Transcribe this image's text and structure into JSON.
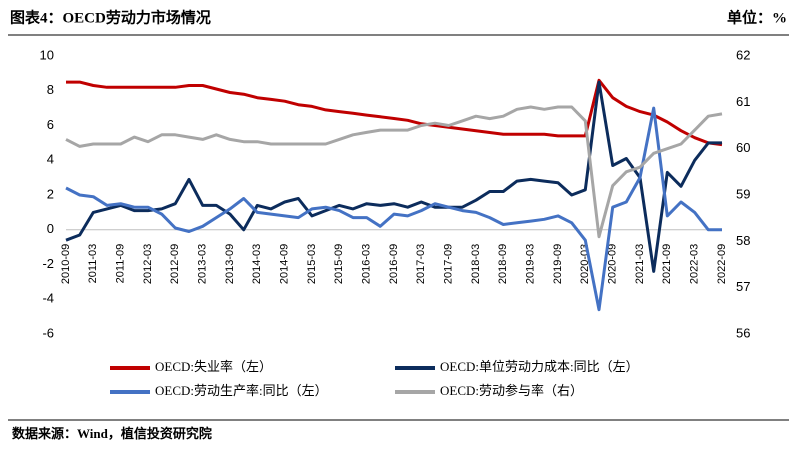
{
  "chart_data": {
    "type": "line",
    "title": "图表4：OECD劳动力市场情况",
    "unit": "单位：%",
    "source": "数据来源：Wind，植信投资研究院",
    "categories": [
      "2010-09",
      null,
      "2011-03",
      null,
      "2011-09",
      null,
      "2012-03",
      null,
      "2012-09",
      null,
      "2013-03",
      null,
      "2013-09",
      null,
      "2014-03",
      null,
      "2014-09",
      null,
      "2015-03",
      null,
      "2015-09",
      null,
      "2016-03",
      null,
      "2016-09",
      null,
      "2017-03",
      null,
      "2017-09",
      null,
      "2018-03",
      null,
      "2018-09",
      null,
      "2019-03",
      null,
      "2019-09",
      null,
      "2020-03",
      null,
      "2020-09",
      null,
      "2021-03",
      null,
      "2021-09",
      null,
      "2022-03",
      null,
      "2022-09"
    ],
    "series": [
      {
        "name": "OECD:失业率（左）",
        "color": "#c00000",
        "values": [
          8.5,
          8.5,
          8.3,
          8.2,
          8.2,
          8.2,
          8.2,
          8.2,
          8.2,
          8.3,
          8.3,
          8.1,
          7.9,
          7.8,
          7.6,
          7.5,
          7.4,
          7.2,
          7.1,
          6.9,
          6.8,
          6.7,
          6.6,
          6.5,
          6.4,
          6.3,
          6.1,
          6.0,
          5.9,
          5.8,
          5.7,
          5.6,
          5.5,
          5.5,
          5.5,
          5.5,
          5.4,
          5.4,
          5.4,
          8.6,
          7.6,
          7.1,
          6.8,
          6.6,
          6.2,
          5.7,
          5.3,
          5.0,
          4.9
        ]
      },
      {
        "name": "OECD:单位劳动力成本:同比（左）",
        "color": "#0c2c5c",
        "values": [
          -0.6,
          -0.3,
          1.0,
          1.2,
          1.4,
          1.1,
          1.1,
          1.2,
          1.5,
          2.9,
          1.4,
          1.4,
          0.9,
          0,
          1.4,
          1.2,
          1.6,
          1.8,
          0.8,
          1.1,
          1.4,
          1.2,
          1.5,
          1.4,
          1.5,
          1.3,
          1.6,
          1.3,
          1.3,
          1.3,
          1.7,
          2.2,
          2.2,
          2.8,
          2.9,
          2.8,
          2.7,
          2.0,
          2.3,
          8.5,
          3.7,
          4.1,
          3.0,
          -2.4,
          3.3,
          2.5,
          4.0,
          5.0,
          5.0
        ]
      },
      {
        "name": "OECD:劳动生产率:同比（左）",
        "color": "#4472c4",
        "values": [
          2.4,
          2.0,
          1.9,
          1.4,
          1.5,
          1.3,
          1.3,
          0.9,
          0.1,
          -0.1,
          0.2,
          0.7,
          1.2,
          1.8,
          1.0,
          0.9,
          0.8,
          0.7,
          1.2,
          1.3,
          1.1,
          0.7,
          0.7,
          0.2,
          0.9,
          0.8,
          1.1,
          1.5,
          1.3,
          1.1,
          1.0,
          0.7,
          0.3,
          0.4,
          0.5,
          0.6,
          0.8,
          0.4,
          -0.6,
          -4.6,
          1.3,
          1.6,
          3.0,
          7.0,
          0.8,
          1.6,
          1.0,
          0,
          0
        ]
      },
      {
        "name": "OECD:劳动参与率（右）",
        "color": "#a6a6a6",
        "axis": "y2",
        "values": [
          60.2,
          60.05,
          60.1,
          60.1,
          60.1,
          60.25,
          60.15,
          60.3,
          60.3,
          60.25,
          60.2,
          60.3,
          60.2,
          60.15,
          60.15,
          60.1,
          60.1,
          60.1,
          60.1,
          60.1,
          60.2,
          60.3,
          60.35,
          60.4,
          60.4,
          60.4,
          60.5,
          60.55,
          60.5,
          60.6,
          60.7,
          60.65,
          60.7,
          60.85,
          60.9,
          60.85,
          60.9,
          60.9,
          60.6,
          58.1,
          59.2,
          59.5,
          59.6,
          59.9,
          60.0,
          60.1,
          60.4,
          60.7,
          60.75
        ]
      }
    ],
    "ylim": [
      -6,
      10
    ],
    "yticks": [
      -6,
      -4,
      -2,
      0,
      2,
      4,
      6,
      8,
      10
    ],
    "y2lim": [
      56,
      62
    ],
    "y2ticks": [
      56,
      57,
      58,
      59,
      60,
      61,
      62
    ],
    "grid": false
  }
}
